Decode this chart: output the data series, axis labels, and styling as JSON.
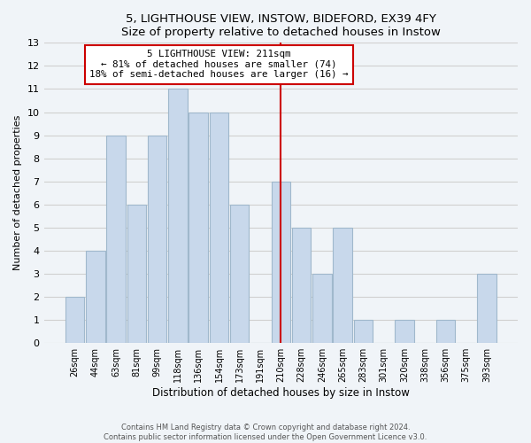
{
  "title1": "5, LIGHTHOUSE VIEW, INSTOW, BIDEFORD, EX39 4FY",
  "title2": "Size of property relative to detached houses in Instow",
  "xlabel": "Distribution of detached houses by size in Instow",
  "ylabel": "Number of detached properties",
  "bar_labels": [
    "26sqm",
    "44sqm",
    "63sqm",
    "81sqm",
    "99sqm",
    "118sqm",
    "136sqm",
    "154sqm",
    "173sqm",
    "191sqm",
    "210sqm",
    "228sqm",
    "246sqm",
    "265sqm",
    "283sqm",
    "301sqm",
    "320sqm",
    "338sqm",
    "356sqm",
    "375sqm",
    "393sqm"
  ],
  "bar_heights": [
    2,
    4,
    9,
    6,
    9,
    11,
    10,
    10,
    6,
    0,
    7,
    5,
    3,
    5,
    1,
    0,
    1,
    0,
    1,
    0,
    3
  ],
  "highlight_index": 10,
  "bar_color": "#c8d8eb",
  "bar_edge_color": "#a0b8cc",
  "highlight_line_color": "#cc0000",
  "annotation_title": "5 LIGHTHOUSE VIEW: 211sqm",
  "annotation_line1": "← 81% of detached houses are smaller (74)",
  "annotation_line2": "18% of semi-detached houses are larger (16) →",
  "annotation_box_facecolor": "#ffffff",
  "annotation_box_edgecolor": "#cc0000",
  "ylim": [
    0,
    13
  ],
  "yticks": [
    0,
    1,
    2,
    3,
    4,
    5,
    6,
    7,
    8,
    9,
    10,
    11,
    12,
    13
  ],
  "grid_color": "#d0d0d0",
  "footnote1": "Contains HM Land Registry data © Crown copyright and database right 2024.",
  "footnote2": "Contains public sector information licensed under the Open Government Licence v3.0.",
  "bg_color": "#f0f4f8"
}
